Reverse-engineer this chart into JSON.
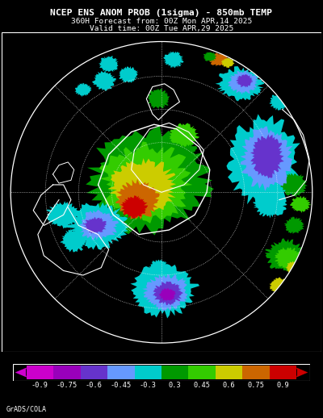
{
  "title_line1": "NCEP ENS ANOM PROB (1sigma) - 850mb TEMP",
  "title_line2": "360H Forecast from: 00Z Mon APR,14 2025",
  "title_line3": "Valid time: 00Z Tue APR,29 2025",
  "credit": "GrADS/COLA",
  "background_color": "#000000",
  "title_color": "#ffffff",
  "figsize": [
    4.0,
    5.18
  ],
  "dpi": 100,
  "cb_colors": [
    "#cc00cc",
    "#9900bb",
    "#6633cc",
    "#6699ff",
    "#00cccc",
    "#009900",
    "#33cc00",
    "#cccc00",
    "#cc6600",
    "#cc0000"
  ],
  "cb_labels": [
    "-0.9",
    "-0.75",
    "-0.6",
    "-0.45",
    "-0.3",
    "0.3",
    "0.45",
    "0.6",
    "0.75",
    "0.9"
  ],
  "col_m09": "#cc00cc",
  "col_m075": "#9900bb",
  "col_m06": "#6633cc",
  "col_m045": "#6699ff",
  "col_m03": "#00cccc",
  "col_p03": "#009900",
  "col_p045": "#33cc00",
  "col_p06": "#cccc00",
  "col_p075": "#cc6600",
  "col_p09": "#cc0000"
}
